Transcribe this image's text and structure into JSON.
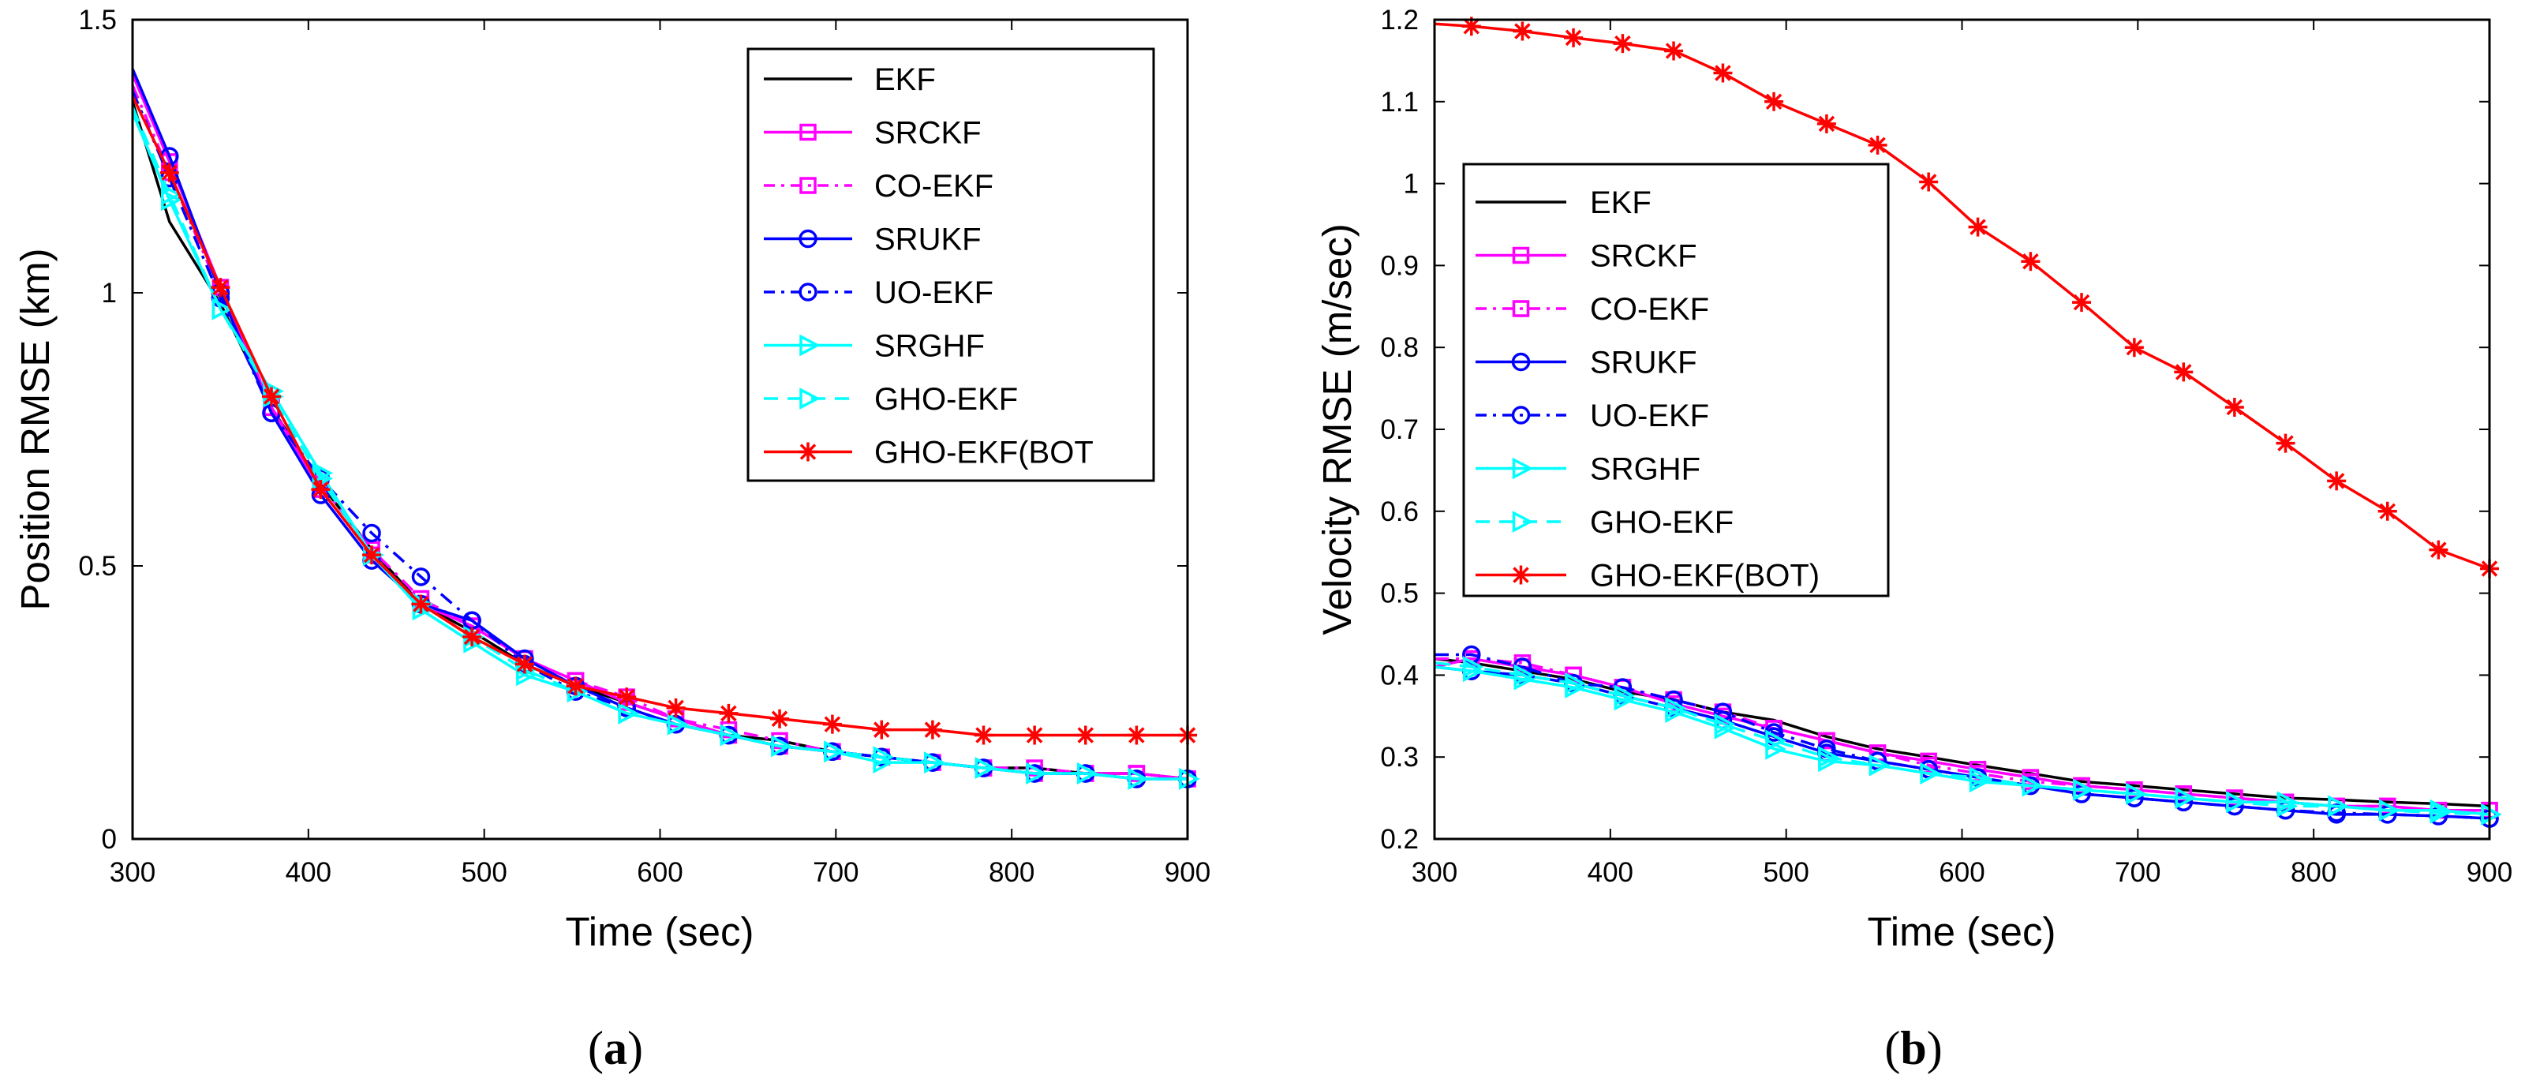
{
  "chart_data": [
    {
      "type": "line",
      "caption": "a",
      "xlabel": "Time (sec)",
      "ylabel": "Position RMSE (km)",
      "xlim": [
        300,
        900
      ],
      "ylim": [
        0,
        1.5
      ],
      "xticks": [
        "300",
        "400",
        "500",
        "600",
        "700",
        "800",
        "900"
      ],
      "yticks": [
        "0",
        "0.5",
        "1",
        "1.5"
      ],
      "legend_position": "top-right",
      "x": [
        300,
        321,
        350,
        379,
        407,
        436,
        464,
        493,
        523,
        552,
        581,
        609,
        639,
        668,
        698,
        726,
        755,
        784,
        813,
        842,
        871,
        900
      ],
      "series": [
        {
          "name": "EKF",
          "legend_label": "EKF",
          "color": "#000000",
          "dash": "solid",
          "marker": "none",
          "values": [
            1.35,
            1.13,
            0.98,
            0.79,
            0.65,
            0.53,
            0.43,
            0.38,
            0.32,
            0.28,
            0.25,
            0.22,
            0.19,
            0.18,
            0.16,
            0.15,
            0.14,
            0.13,
            0.13,
            0.12,
            0.12,
            0.11
          ]
        },
        {
          "name": "SRCKF",
          "legend_label": "SRCKF",
          "color": "#ff00ff",
          "dash": "solid",
          "marker": "square",
          "values": [
            1.4,
            1.24,
            1.01,
            0.79,
            0.64,
            0.52,
            0.43,
            0.39,
            0.33,
            0.29,
            0.25,
            0.22,
            0.19,
            0.17,
            0.16,
            0.15,
            0.14,
            0.13,
            0.12,
            0.12,
            0.12,
            0.11
          ]
        },
        {
          "name": "CO-EKF",
          "legend_label": "CO-EKF",
          "color": "#ff00ff",
          "dash": "dashdot",
          "marker": "square",
          "values": [
            1.38,
            1.22,
            1.0,
            0.79,
            0.65,
            0.53,
            0.44,
            0.39,
            0.33,
            0.29,
            0.26,
            0.22,
            0.2,
            0.18,
            0.16,
            0.15,
            0.14,
            0.13,
            0.13,
            0.12,
            0.12,
            0.11
          ]
        },
        {
          "name": "SRUKF",
          "legend_label": "SRUKF",
          "color": "#0000ff",
          "dash": "solid",
          "marker": "circle",
          "values": [
            1.41,
            1.25,
            1.0,
            0.78,
            0.63,
            0.51,
            0.43,
            0.4,
            0.33,
            0.28,
            0.24,
            0.21,
            0.19,
            0.17,
            0.16,
            0.15,
            0.14,
            0.13,
            0.12,
            0.12,
            0.11,
            0.11
          ]
        },
        {
          "name": "UO-EKF",
          "legend_label": "UO-EKF",
          "color": "#0000ff",
          "dash": "dashdot",
          "marker": "circle",
          "values": [
            1.37,
            1.21,
            0.99,
            0.78,
            0.66,
            0.56,
            0.48,
            0.4,
            0.32,
            0.27,
            0.24,
            0.21,
            0.19,
            0.17,
            0.16,
            0.15,
            0.14,
            0.13,
            0.12,
            0.12,
            0.11,
            0.11
          ]
        },
        {
          "name": "SRGHF",
          "legend_label": "SRGHF",
          "color": "#00ffff",
          "dash": "solid",
          "marker": "triangle-right",
          "values": [
            1.33,
            1.17,
            0.97,
            0.82,
            0.67,
            0.52,
            0.42,
            0.36,
            0.3,
            0.27,
            0.23,
            0.21,
            0.19,
            0.17,
            0.16,
            0.14,
            0.14,
            0.13,
            0.12,
            0.12,
            0.11,
            0.11
          ]
        },
        {
          "name": "GHO-EKF",
          "legend_label": "GHO-EKF",
          "color": "#00ffff",
          "dash": "dashed",
          "marker": "triangle-right",
          "values": [
            1.34,
            1.18,
            0.97,
            0.81,
            0.66,
            0.52,
            0.43,
            0.37,
            0.31,
            0.27,
            0.23,
            0.21,
            0.19,
            0.17,
            0.16,
            0.15,
            0.14,
            0.13,
            0.12,
            0.12,
            0.11,
            0.11
          ]
        },
        {
          "name": "GHO-EKF(BOT)",
          "legend_label": "GHO-EKF(BOT",
          "color": "#ff0000",
          "dash": "solid",
          "marker": "asterisk",
          "values": [
            1.36,
            1.22,
            1.01,
            0.81,
            0.64,
            0.52,
            0.43,
            0.37,
            0.32,
            0.28,
            0.26,
            0.24,
            0.23,
            0.22,
            0.21,
            0.2,
            0.2,
            0.19,
            0.19,
            0.19,
            0.19,
            0.19
          ]
        }
      ]
    },
    {
      "type": "line",
      "caption": "b",
      "xlabel": "Time (sec)",
      "ylabel": "Velocity RMSE (m/sec)",
      "xlim": [
        300,
        900
      ],
      "ylim": [
        0.2,
        1.2
      ],
      "xticks": [
        "300",
        "400",
        "500",
        "600",
        "700",
        "800",
        "900"
      ],
      "yticks": [
        "0.2",
        "0.3",
        "0.4",
        "0.5",
        "0.6",
        "0.7",
        "0.8",
        "0.9",
        "1",
        "1.1",
        "1.2"
      ],
      "legend_position": "top-left",
      "x": [
        300,
        321,
        350,
        379,
        407,
        436,
        464,
        493,
        523,
        552,
        581,
        609,
        639,
        668,
        698,
        726,
        755,
        784,
        813,
        842,
        871,
        900
      ],
      "series": [
        {
          "name": "EKF",
          "legend_label": "EKF",
          "color": "#000000",
          "dash": "solid",
          "marker": "none",
          "values": [
            0.42,
            0.415,
            0.405,
            0.395,
            0.38,
            0.37,
            0.355,
            0.345,
            0.325,
            0.31,
            0.3,
            0.29,
            0.28,
            0.27,
            0.265,
            0.26,
            0.255,
            0.25,
            0.248,
            0.245,
            0.243,
            0.24
          ]
        },
        {
          "name": "SRCKF",
          "legend_label": "SRCKF",
          "color": "#ff00ff",
          "dash": "solid",
          "marker": "square",
          "values": [
            0.41,
            0.42,
            0.41,
            0.4,
            0.385,
            0.365,
            0.35,
            0.335,
            0.32,
            0.305,
            0.295,
            0.285,
            0.275,
            0.265,
            0.26,
            0.255,
            0.25,
            0.245,
            0.24,
            0.24,
            0.235,
            0.235
          ]
        },
        {
          "name": "CO-EKF",
          "legend_label": "CO-EKF",
          "color": "#ff00ff",
          "dash": "dashdot",
          "marker": "square",
          "values": [
            0.42,
            0.42,
            0.415,
            0.4,
            0.385,
            0.37,
            0.355,
            0.335,
            0.32,
            0.305,
            0.29,
            0.28,
            0.27,
            0.265,
            0.26,
            0.255,
            0.25,
            0.245,
            0.24,
            0.24,
            0.235,
            0.235
          ]
        },
        {
          "name": "SRUKF",
          "legend_label": "SRUKF",
          "color": "#0000ff",
          "dash": "solid",
          "marker": "circle",
          "values": [
            0.41,
            0.405,
            0.4,
            0.39,
            0.375,
            0.36,
            0.345,
            0.325,
            0.305,
            0.295,
            0.285,
            0.275,
            0.265,
            0.255,
            0.25,
            0.245,
            0.24,
            0.235,
            0.23,
            0.23,
            0.228,
            0.225
          ]
        },
        {
          "name": "UO-EKF",
          "legend_label": "UO-EKF",
          "color": "#0000ff",
          "dash": "dashdot",
          "marker": "circle",
          "values": [
            0.425,
            0.425,
            0.41,
            0.39,
            0.385,
            0.37,
            0.355,
            0.33,
            0.31,
            0.295,
            0.285,
            0.275,
            0.265,
            0.255,
            0.25,
            0.245,
            0.24,
            0.235,
            0.232,
            0.23,
            0.228,
            0.225
          ]
        },
        {
          "name": "SRGHF",
          "legend_label": "SRGHF",
          "color": "#00ffff",
          "dash": "solid",
          "marker": "triangle-right",
          "values": [
            0.41,
            0.405,
            0.395,
            0.385,
            0.37,
            0.355,
            0.335,
            0.31,
            0.295,
            0.29,
            0.28,
            0.27,
            0.265,
            0.26,
            0.255,
            0.25,
            0.245,
            0.245,
            0.24,
            0.235,
            0.235,
            0.23
          ]
        },
        {
          "name": "GHO-EKF",
          "legend_label": "GHO-EKF",
          "color": "#00ffff",
          "dash": "dashed",
          "marker": "triangle-right",
          "values": [
            0.415,
            0.41,
            0.4,
            0.39,
            0.375,
            0.36,
            0.34,
            0.32,
            0.3,
            0.29,
            0.28,
            0.275,
            0.265,
            0.26,
            0.255,
            0.25,
            0.245,
            0.24,
            0.24,
            0.235,
            0.232,
            0.23
          ]
        },
        {
          "name": "GHO-EKF(BOT)",
          "legend_label": "GHO-EKF(BOT)",
          "color": "#ff0000",
          "dash": "solid",
          "marker": "asterisk",
          "values": [
            1.195,
            1.192,
            1.186,
            1.178,
            1.171,
            1.162,
            1.135,
            1.1,
            1.073,
            1.047,
            1.002,
            0.947,
            0.905,
            0.855,
            0.8,
            0.77,
            0.727,
            0.683,
            0.637,
            0.6,
            0.553,
            0.53
          ]
        }
      ]
    }
  ]
}
